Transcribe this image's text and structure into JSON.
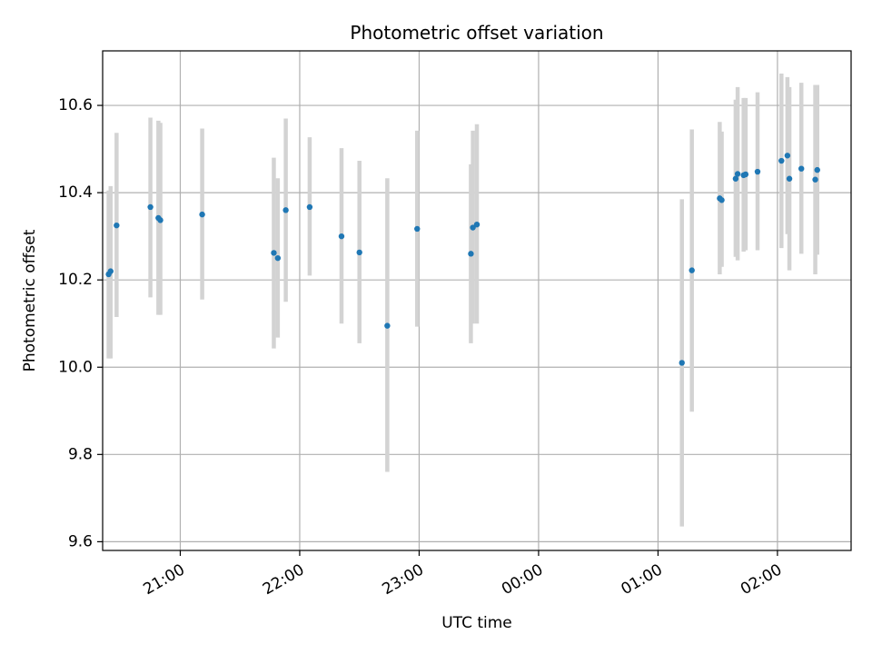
{
  "chart_data": {
    "type": "scatter",
    "title": "Photometric offset variation",
    "xlabel": "UTC time",
    "ylabel": "Photometric offset",
    "x_tick_labels": [
      "21:00",
      "22:00",
      "23:00",
      "00:00",
      "01:00",
      "02:00"
    ],
    "x_tick_times": [
      "21:00",
      "22:00",
      "23:00",
      "00:00",
      "01:00",
      "02:00"
    ],
    "y_tick_labels": [
      "9.6",
      "9.8",
      "10.0",
      "10.2",
      "10.4",
      "10.6"
    ],
    "y_ticks": [
      9.6,
      9.8,
      10.0,
      10.2,
      10.4,
      10.6
    ],
    "xlim": [
      "20:21",
      "02:37"
    ],
    "ylim": [
      9.58,
      10.725
    ],
    "grid": true,
    "colors": {
      "point": "#1f77b4",
      "errorbar": "#d3d3d3",
      "grid": "#b0b0b0",
      "axes": "#000000"
    },
    "series": [
      {
        "points": [
          {
            "t": "20:24",
            "y": 10.213,
            "lo": 10.02,
            "hi": 10.405
          },
          {
            "t": "20:25",
            "y": 10.22,
            "lo": 10.02,
            "hi": 10.415
          },
          {
            "t": "20:28",
            "y": 10.325,
            "lo": 10.115,
            "hi": 10.537
          },
          {
            "t": "20:45",
            "y": 10.367,
            "lo": 10.16,
            "hi": 10.572
          },
          {
            "t": "20:49",
            "y": 10.342,
            "lo": 10.12,
            "hi": 10.565
          },
          {
            "t": "20:50",
            "y": 10.337,
            "lo": 10.12,
            "hi": 10.56
          },
          {
            "t": "21:11",
            "y": 10.35,
            "lo": 10.155,
            "hi": 10.547
          },
          {
            "t": "21:47",
            "y": 10.262,
            "lo": 10.043,
            "hi": 10.48
          },
          {
            "t": "21:49",
            "y": 10.25,
            "lo": 10.068,
            "hi": 10.433
          },
          {
            "t": "21:53",
            "y": 10.36,
            "lo": 10.15,
            "hi": 10.57
          },
          {
            "t": "22:05",
            "y": 10.367,
            "lo": 10.21,
            "hi": 10.527
          },
          {
            "t": "22:21",
            "y": 10.3,
            "lo": 10.1,
            "hi": 10.502
          },
          {
            "t": "22:30",
            "y": 10.263,
            "lo": 10.055,
            "hi": 10.473
          },
          {
            "t": "22:44",
            "y": 10.095,
            "lo": 9.76,
            "hi": 10.433
          },
          {
            "t": "22:59",
            "y": 10.317,
            "lo": 10.093,
            "hi": 10.542
          },
          {
            "t": "23:26",
            "y": 10.26,
            "lo": 10.055,
            "hi": 10.465
          },
          {
            "t": "23:27",
            "y": 10.32,
            "lo": 10.1,
            "hi": 10.542
          },
          {
            "t": "23:29",
            "y": 10.327,
            "lo": 10.1,
            "hi": 10.557
          },
          {
            "t": "01:12",
            "y": 10.01,
            "lo": 9.635,
            "hi": 10.385
          },
          {
            "t": "01:17",
            "y": 10.222,
            "lo": 9.898,
            "hi": 10.545
          },
          {
            "t": "01:31",
            "y": 10.387,
            "lo": 10.213,
            "hi": 10.562
          },
          {
            "t": "01:32",
            "y": 10.383,
            "lo": 10.23,
            "hi": 10.54
          },
          {
            "t": "01:39",
            "y": 10.432,
            "lo": 10.253,
            "hi": 10.613
          },
          {
            "t": "01:40",
            "y": 10.443,
            "lo": 10.245,
            "hi": 10.642
          },
          {
            "t": "01:43",
            "y": 10.44,
            "lo": 10.265,
            "hi": 10.617
          },
          {
            "t": "01:44",
            "y": 10.442,
            "lo": 10.268,
            "hi": 10.617
          },
          {
            "t": "01:50",
            "y": 10.448,
            "lo": 10.268,
            "hi": 10.63
          },
          {
            "t": "02:02",
            "y": 10.473,
            "lo": 10.273,
            "hi": 10.673
          },
          {
            "t": "02:05",
            "y": 10.485,
            "lo": 10.305,
            "hi": 10.665
          },
          {
            "t": "02:06",
            "y": 10.432,
            "lo": 10.222,
            "hi": 10.642
          },
          {
            "t": "02:12",
            "y": 10.455,
            "lo": 10.26,
            "hi": 10.652
          },
          {
            "t": "02:19",
            "y": 10.43,
            "lo": 10.213,
            "hi": 10.647
          },
          {
            "t": "02:20",
            "y": 10.452,
            "lo": 10.258,
            "hi": 10.647
          }
        ]
      }
    ]
  }
}
